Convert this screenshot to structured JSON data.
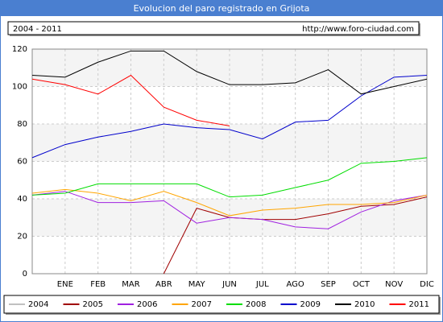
{
  "chart_data": {
    "type": "line",
    "title": "Evolucion del paro registrado en Grijota",
    "subtitle": "2004 - 2011",
    "source": "http://www.foro-ciudad.com",
    "categories": [
      null,
      "ENE",
      "FEB",
      "MAR",
      "ABR",
      "MAY",
      "JUN",
      "JUL",
      "AGO",
      "SEP",
      "OCT",
      "NOV",
      "DIC"
    ],
    "ylim": [
      0,
      120
    ],
    "yticks": [
      0,
      20,
      40,
      60,
      80,
      100,
      120
    ],
    "grid": true,
    "series": [
      {
        "name": "2004",
        "color": "#c0c0c0",
        "values": [
          null,
          null,
          null,
          null,
          null,
          null,
          null,
          null,
          null,
          null,
          null,
          null,
          null
        ]
      },
      {
        "name": "2005",
        "color": "#a00000",
        "values": [
          null,
          null,
          null,
          null,
          0,
          35,
          30,
          29,
          29,
          32,
          36,
          37,
          41
        ]
      },
      {
        "name": "2006",
        "color": "#a020e0",
        "values": [
          42,
          44,
          38,
          38,
          39,
          27,
          30,
          29,
          25,
          24,
          33,
          39,
          42
        ]
      },
      {
        "name": "2007",
        "color": "#ffa500",
        "values": [
          43,
          45,
          43,
          39,
          44,
          38,
          31,
          34,
          35,
          37,
          37,
          38,
          42
        ]
      },
      {
        "name": "2008",
        "color": "#00dd00",
        "values": [
          42,
          43,
          48,
          48,
          48,
          48,
          41,
          42,
          46,
          50,
          59,
          60,
          62
        ]
      },
      {
        "name": "2009",
        "color": "#0000cc",
        "values": [
          62,
          69,
          73,
          76,
          80,
          78,
          77,
          72,
          81,
          82,
          95,
          105,
          106
        ]
      },
      {
        "name": "2010",
        "color": "#000000",
        "values": [
          106,
          105,
          113,
          119,
          119,
          108,
          101,
          101,
          102,
          109,
          96,
          100,
          104
        ]
      },
      {
        "name": "2011",
        "color": "#ff0000",
        "values": [
          104,
          101,
          96,
          106,
          89,
          82,
          79,
          null,
          null,
          null,
          null,
          null,
          null
        ]
      }
    ]
  }
}
